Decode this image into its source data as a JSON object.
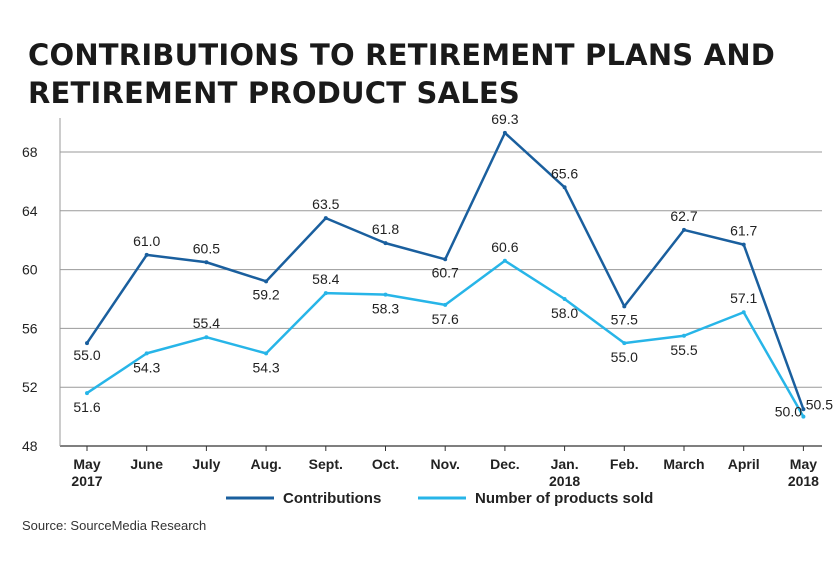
{
  "chart_data": {
    "type": "line",
    "title": "CONTRIBUTIONS TO RETIREMENT PLANS AND RETIREMENT PRODUCT SALES",
    "title_lines": [
      "CONTRIBUTIONS TO RETIREMENT PLANS AND",
      "RETIREMENT PRODUCT SALES"
    ],
    "categories": [
      "May\n2017",
      "June",
      "July",
      "Aug.",
      "Sept.",
      "Oct.",
      "Nov.",
      "Dec.",
      "Jan.\n2018",
      "Feb.",
      "March",
      "April",
      "May\n2018"
    ],
    "series": [
      {
        "name": "Contributions",
        "color": "#1a5f9e",
        "values": [
          55.0,
          61.0,
          60.5,
          59.2,
          63.5,
          61.8,
          60.7,
          69.3,
          65.6,
          57.5,
          62.7,
          61.7,
          50.5
        ],
        "labels": [
          "55.0",
          "61.0",
          "60.5",
          "59.2",
          "63.5",
          "61.8",
          "60.7",
          "69.3",
          "65.6",
          "57.5",
          "62.7",
          "61.7",
          "50.5"
        ]
      },
      {
        "name": "Number of products sold",
        "color": "#27b5e8",
        "values": [
          51.6,
          54.3,
          55.4,
          54.3,
          58.4,
          58.3,
          57.6,
          60.6,
          58.0,
          55.0,
          55.5,
          57.1,
          50.0
        ],
        "labels": [
          "51.6",
          "54.3",
          "55.4",
          "54.3",
          "58.4",
          "58.3",
          "57.6",
          "60.6",
          "58.0",
          "55.0",
          "55.5",
          "57.1",
          "50.0"
        ]
      }
    ],
    "yticks": [
      "48",
      "52",
      "56",
      "60",
      "64",
      "68"
    ],
    "ytick_values": [
      48,
      52,
      56,
      60,
      64,
      68
    ],
    "ylim": [
      48,
      71
    ],
    "xlabel": "",
    "ylabel": "",
    "grid": true,
    "legend_position": "bottom-center"
  },
  "source": "Source: SourceMedia Research"
}
